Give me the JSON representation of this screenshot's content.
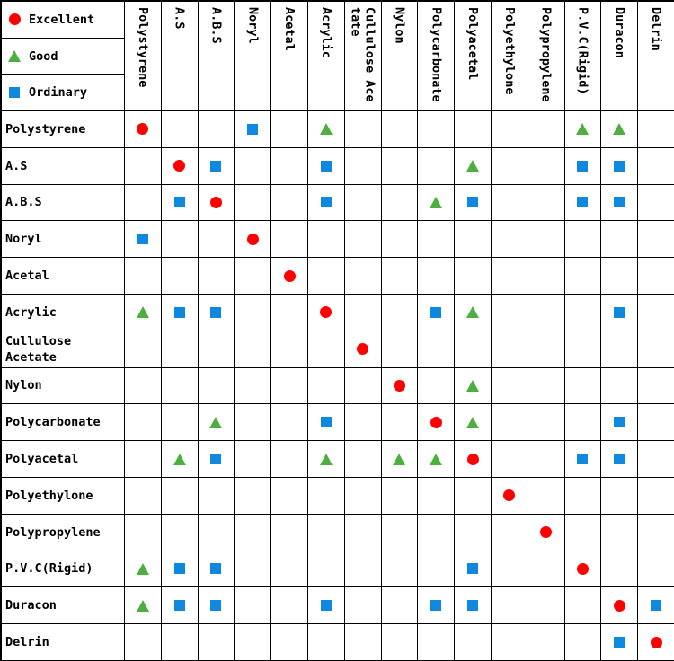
{
  "legend": [
    {
      "key": "E",
      "label": "Excellent",
      "icon": "excellent-circle-icon",
      "color": "#ff0000"
    },
    {
      "key": "G",
      "label": "Good",
      "icon": "good-triangle-icon",
      "color": "#4caf3f"
    },
    {
      "key": "O",
      "label": "Ordinary",
      "icon": "ordinary-square-icon",
      "color": "#0f88e0"
    }
  ],
  "columns": [
    "Polystyrene",
    "A.S",
    "A.B.S",
    "Noryl",
    "Acetal",
    "Acrylic",
    "Cullulose Acetate",
    "Nylon",
    "Polycarbonate",
    "Polyacetal",
    "Polyethylone",
    "Polypropylene",
    "P.V.C(Rigid)",
    "Duracon",
    "Delrin"
  ],
  "rows": [
    {
      "label": "Polystyrene",
      "marks": [
        "E",
        "",
        "",
        "O",
        "",
        "G",
        "",
        "",
        "",
        "",
        "",
        "",
        "G",
        "G",
        ""
      ]
    },
    {
      "label": "A.S",
      "marks": [
        "",
        "E",
        "O",
        "",
        "",
        "O",
        "",
        "",
        "",
        "G",
        "",
        "",
        "O",
        "O",
        ""
      ]
    },
    {
      "label": "A.B.S",
      "marks": [
        "",
        "O",
        "E",
        "",
        "",
        "O",
        "",
        "",
        "G",
        "O",
        "",
        "",
        "O",
        "O",
        ""
      ]
    },
    {
      "label": "Noryl",
      "marks": [
        "O",
        "",
        "",
        "E",
        "",
        "",
        "",
        "",
        "",
        "",
        "",
        "",
        "",
        "",
        ""
      ]
    },
    {
      "label": "Acetal",
      "marks": [
        "",
        "",
        "",
        "",
        "E",
        "",
        "",
        "",
        "",
        "",
        "",
        "",
        "",
        "",
        ""
      ]
    },
    {
      "label": "Acrylic",
      "marks": [
        "G",
        "O",
        "O",
        "",
        "",
        "E",
        "",
        "",
        "O",
        "G",
        "",
        "",
        "",
        "O",
        ""
      ]
    },
    {
      "label": "Cullulose Acetate",
      "marks": [
        "",
        "",
        "",
        "",
        "",
        "",
        "E",
        "",
        "",
        "",
        "",
        "",
        "",
        "",
        ""
      ]
    },
    {
      "label": "Nylon",
      "marks": [
        "",
        "",
        "",
        "",
        "",
        "",
        "",
        "E",
        "",
        "G",
        "",
        "",
        "",
        "",
        ""
      ]
    },
    {
      "label": "Polycarbonate",
      "marks": [
        "",
        "",
        "G",
        "",
        "",
        "O",
        "",
        "",
        "E",
        "G",
        "",
        "",
        "",
        "O",
        ""
      ]
    },
    {
      "label": "Polyacetal",
      "marks": [
        "",
        "G",
        "O",
        "",
        "",
        "G",
        "",
        "G",
        "G",
        "E",
        "",
        "",
        "O",
        "O",
        ""
      ]
    },
    {
      "label": "Polyethylone",
      "marks": [
        "",
        "",
        "",
        "",
        "",
        "",
        "",
        "",
        "",
        "",
        "E",
        "",
        "",
        "",
        ""
      ]
    },
    {
      "label": "Polypropylene",
      "marks": [
        "",
        "",
        "",
        "",
        "",
        "",
        "",
        "",
        "",
        "",
        "",
        "E",
        "",
        "",
        ""
      ]
    },
    {
      "label": "P.V.C(Rigid)",
      "marks": [
        "G",
        "O",
        "O",
        "",
        "",
        "",
        "",
        "",
        "",
        "O",
        "",
        "",
        "E",
        "",
        ""
      ]
    },
    {
      "label": "Duracon",
      "marks": [
        "G",
        "O",
        "O",
        "",
        "",
        "O",
        "",
        "",
        "O",
        "O",
        "",
        "",
        "",
        "E",
        "O"
      ]
    },
    {
      "label": "Delrin",
      "marks": [
        "",
        "",
        "",
        "",
        "",
        "",
        "",
        "",
        "",
        "",
        "",
        "",
        "",
        "O",
        "E"
      ]
    }
  ]
}
